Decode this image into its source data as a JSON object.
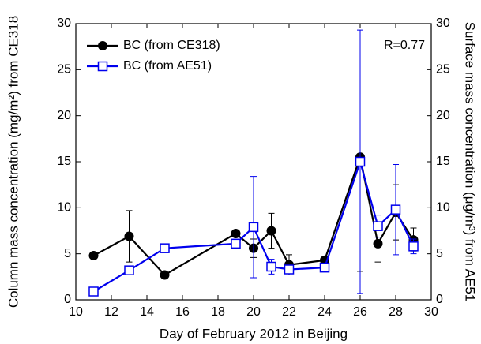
{
  "chart_data": {
    "type": "line",
    "x": [
      11,
      13,
      15,
      19,
      20,
      21,
      22,
      24,
      26,
      27,
      28,
      29
    ],
    "series": [
      {
        "name": "BC (from CE318)",
        "color": "#000000",
        "marker": "circle",
        "values": [
          4.8,
          6.9,
          2.7,
          7.2,
          5.6,
          7.5,
          3.8,
          4.3,
          15.5,
          6.1,
          9.5,
          6.5
        ],
        "errors": [
          null,
          2.8,
          null,
          null,
          1.0,
          1.9,
          1.1,
          0.3,
          12.4,
          2.0,
          3.0,
          1.3
        ]
      },
      {
        "name": "BC (from AE51)",
        "color": "#0000ee",
        "marker": "square",
        "axis": "y2",
        "values": [
          0.9,
          3.2,
          5.6,
          6.1,
          7.9,
          3.6,
          3.3,
          3.5,
          15.0,
          8.0,
          9.8,
          5.8
        ],
        "errors": [
          null,
          null,
          null,
          null,
          5.5,
          0.8,
          null,
          null,
          14.3,
          1.2,
          4.9,
          0.8
        ]
      }
    ],
    "xlabel": "Day of February 2012 in Beijing",
    "ylabel": "Column mass concentration (mg/m²) from CE318",
    "y2label": "Surface mass concentration (μg/m³) from AE51",
    "annotation": "R=0.77",
    "xlim": [
      10,
      30
    ],
    "xticks": [
      10,
      12,
      14,
      16,
      18,
      20,
      22,
      24,
      26,
      28,
      30
    ],
    "ylim": [
      0,
      30
    ],
    "yticks": [
      0,
      5,
      10,
      15,
      20,
      25,
      30
    ],
    "y2lim": [
      0,
      30
    ],
    "y2ticks": [
      0,
      5,
      10,
      15,
      20,
      25,
      30
    ],
    "legend": "upper left"
  }
}
